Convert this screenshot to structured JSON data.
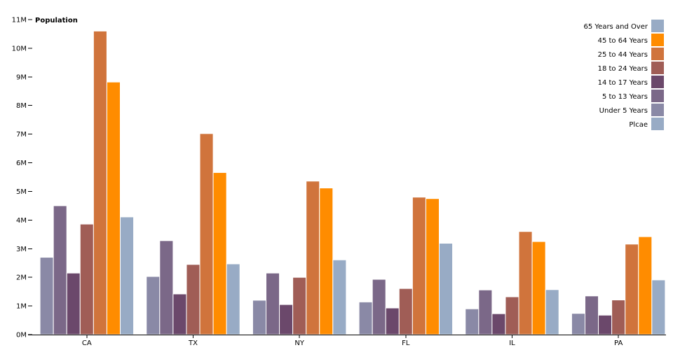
{
  "chart_data": {
    "type": "bar",
    "ylabel": "Population",
    "ylim": [
      0,
      11000000
    ],
    "y_ticks": [
      "0M",
      "1M",
      "2M",
      "3M",
      "4M",
      "5M",
      "6M",
      "7M",
      "8M",
      "9M",
      "10M",
      "11M"
    ],
    "categories": [
      "CA",
      "TX",
      "NY",
      "FL",
      "IL",
      "PA"
    ],
    "series": [
      {
        "name": "Under 5 Years",
        "color": "#8a89a6",
        "values": [
          2700000,
          2030000,
          1200000,
          1140000,
          900000,
          740000
        ]
      },
      {
        "name": "5 to 13 Years",
        "color": "#7b6888",
        "values": [
          4500000,
          3280000,
          2150000,
          1930000,
          1560000,
          1350000
        ]
      },
      {
        "name": "14 to 17 Years",
        "color": "#6b486b",
        "values": [
          2150000,
          1420000,
          1050000,
          930000,
          730000,
          680000
        ]
      },
      {
        "name": "18 to 24 Years",
        "color": "#a05d56",
        "values": [
          3860000,
          2450000,
          2000000,
          1610000,
          1320000,
          1210000
        ]
      },
      {
        "name": "25 to 44 Years",
        "color": "#d0743c",
        "values": [
          10600000,
          7020000,
          5360000,
          4800000,
          3600000,
          3160000
        ]
      },
      {
        "name": "45 to 64 Years",
        "color": "#ff8c00",
        "values": [
          8820000,
          5660000,
          5120000,
          4750000,
          3250000,
          3420000
        ]
      },
      {
        "name": "65 Years and Over",
        "color": "#98abc5",
        "values": [
          4110000,
          2470000,
          2610000,
          3190000,
          1570000,
          1910000
        ]
      }
    ],
    "legend": {
      "placement": "top-right",
      "entries": [
        {
          "label": "65 Years and Over",
          "color": "#98abc5"
        },
        {
          "label": "45 to 64 Years",
          "color": "#ff8c00"
        },
        {
          "label": "25 to 44 Years",
          "color": "#d0743c"
        },
        {
          "label": "18 to 24 Years",
          "color": "#a05d56"
        },
        {
          "label": "14 to 17 Years",
          "color": "#6b486b"
        },
        {
          "label": "5 to 13 Years",
          "color": "#7b6888"
        },
        {
          "label": "Under 5 Years",
          "color": "#8a89a6"
        },
        {
          "label": "Plcae",
          "color": "#98abc5"
        }
      ]
    },
    "grid": false
  }
}
